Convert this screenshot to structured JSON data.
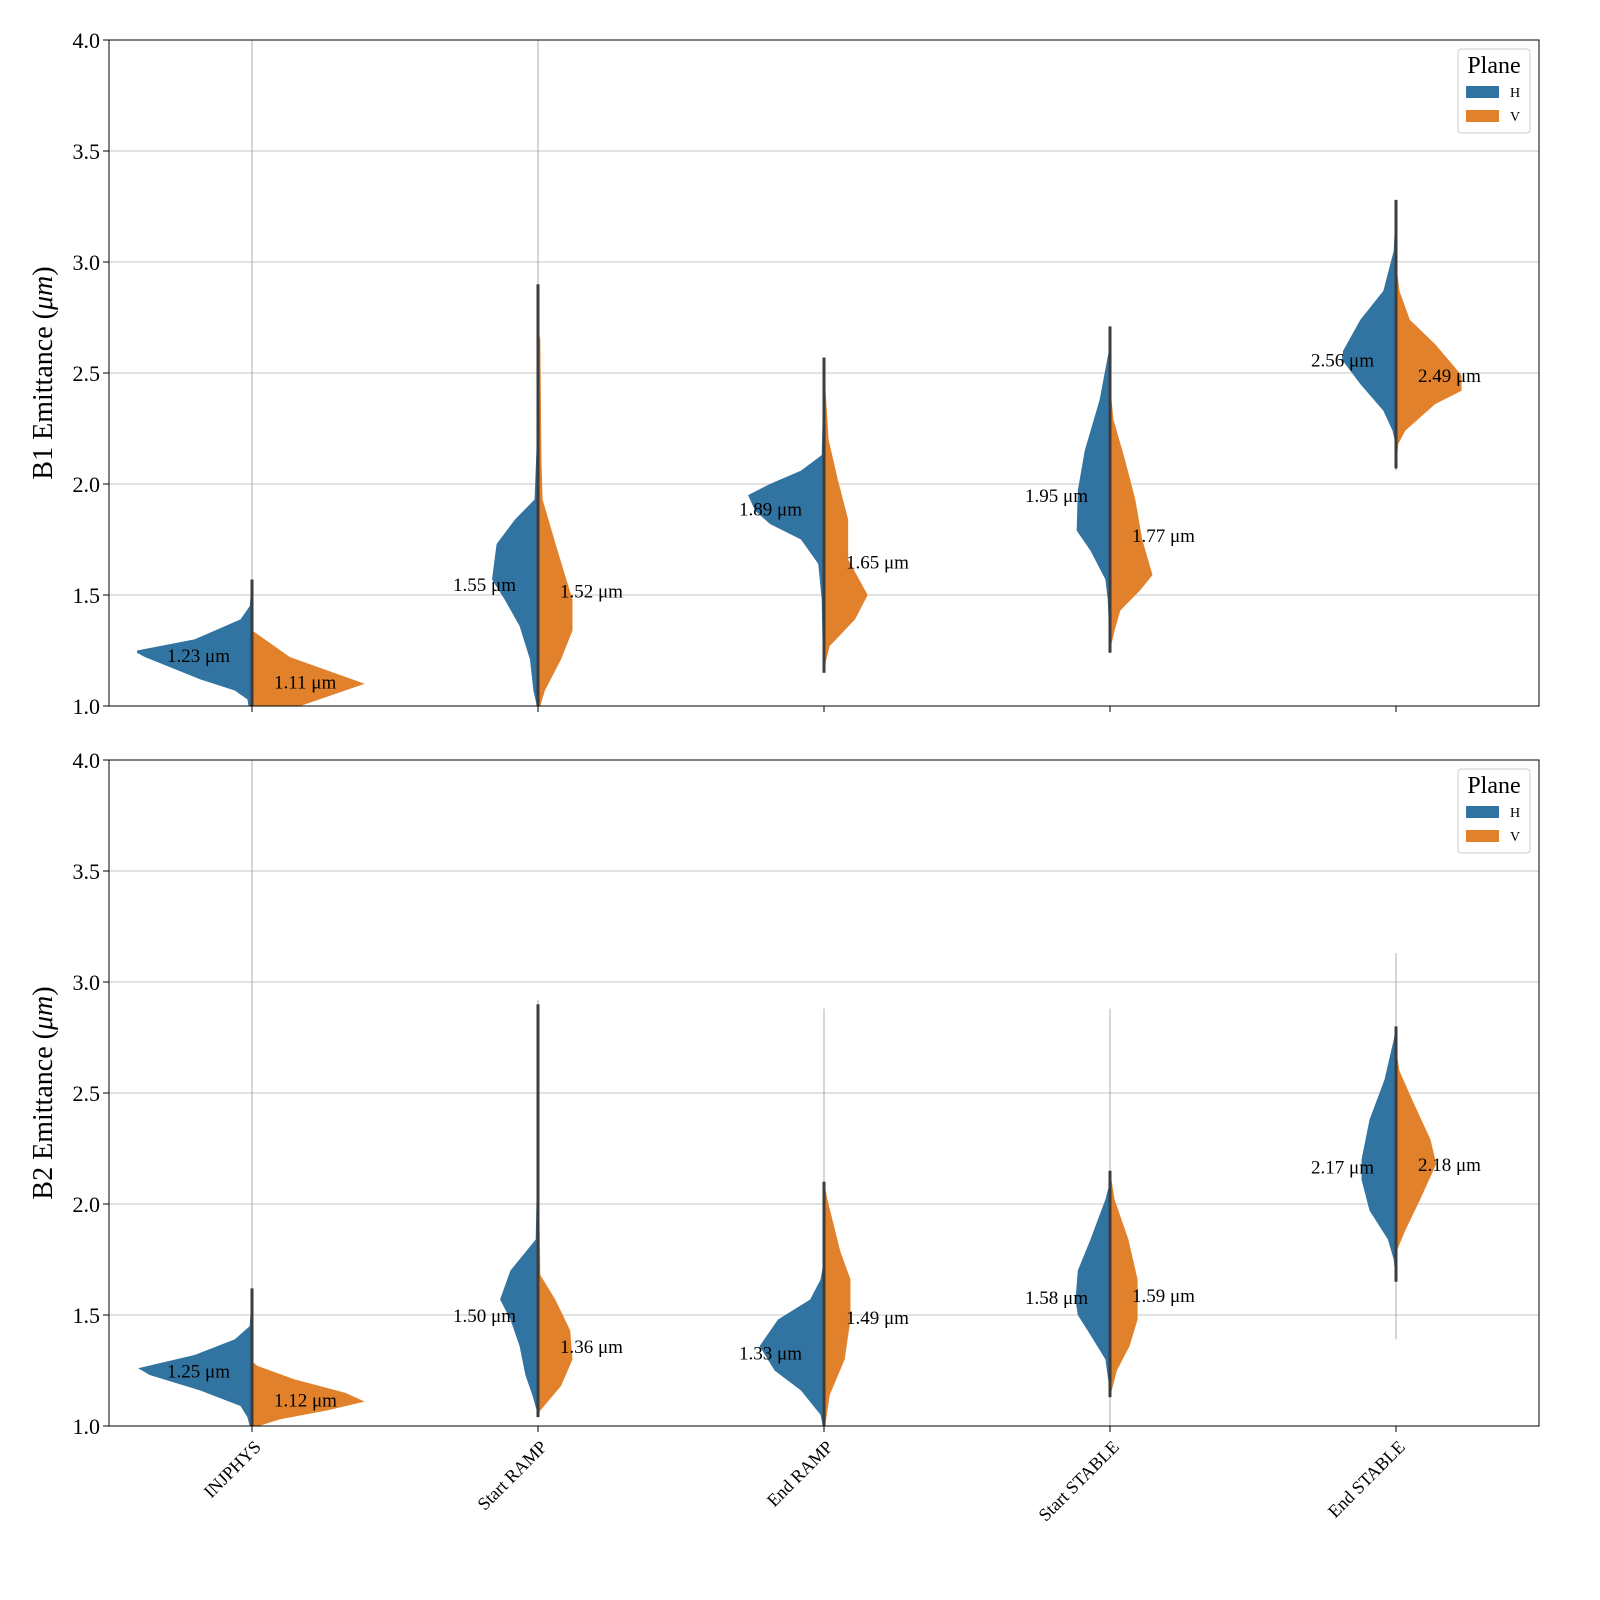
{
  "chart_data": [
    {
      "type": "violin-split",
      "ylabel": "B1 Emittance (",
      "ylabel_unit": "μm",
      "ylabel_close": ")",
      "ylim": [
        1.0,
        4.0
      ],
      "yticks": [
        "1.0",
        "1.5",
        "2.0",
        "2.5",
        "3.0",
        "3.5",
        "4.0"
      ],
      "grid": true,
      "legend": {
        "title": "Plane",
        "entries": [
          "H",
          "V"
        ],
        "placement": "top-right"
      },
      "categories": [
        "INJPHYS",
        "Start RAMP",
        "End RAMP",
        "Start STABLE",
        "End STABLE"
      ],
      "annotations": {
        "H": [
          "1.23 μm",
          "1.55 μm",
          "1.89 μm",
          "1.95 μm",
          "2.56 μm"
        ],
        "V": [
          "1.11 μm",
          "1.52 μm",
          "1.65 μm",
          "1.77 μm",
          "2.49 μm"
        ]
      },
      "means": {
        "H": [
          1.23,
          1.55,
          1.89,
          1.95,
          2.56
        ],
        "V": [
          1.11,
          1.52,
          1.65,
          1.77,
          2.49
        ]
      },
      "ranges": [
        [
          1.0,
          4.0
        ],
        [
          1.0,
          4.0
        ],
        [
          1.15,
          2.57
        ],
        [
          1.24,
          2.71
        ],
        [
          2.06,
          3.28
        ]
      ],
      "density": {
        "H": [
          [
            [
              1.0,
              0.03
            ],
            [
              1.03,
              0.04
            ],
            [
              1.07,
              0.15
            ],
            [
              1.12,
              0.45
            ],
            [
              1.22,
              0.93
            ],
            [
              1.24,
              1.0
            ],
            [
              1.25,
              1.0
            ],
            [
              1.3,
              0.5
            ],
            [
              1.39,
              0.1
            ],
            [
              1.45,
              0.02
            ],
            [
              1.57,
              0
            ]
          ],
          [
            [
              1.0,
              0.01
            ],
            [
              1.07,
              0.04
            ],
            [
              1.21,
              0.07
            ],
            [
              1.36,
              0.16
            ],
            [
              1.48,
              0.29
            ],
            [
              1.57,
              0.4
            ],
            [
              1.73,
              0.36
            ],
            [
              1.84,
              0.2
            ],
            [
              1.93,
              0.03
            ],
            [
              2.2,
              0.01
            ],
            [
              2.9,
              0
            ]
          ],
          [
            [
              1.16,
              0
            ],
            [
              1.21,
              0.01
            ],
            [
              1.48,
              0.02
            ],
            [
              1.64,
              0.05
            ],
            [
              1.75,
              0.2
            ],
            [
              1.82,
              0.47
            ],
            [
              1.88,
              0.6
            ],
            [
              1.95,
              0.66
            ],
            [
              2.0,
              0.47
            ],
            [
              2.06,
              0.2
            ],
            [
              2.13,
              0.02
            ],
            [
              2.57,
              0
            ]
          ],
          [
            [
              1.24,
              0
            ],
            [
              1.48,
              0.02
            ],
            [
              1.57,
              0.04
            ],
            [
              1.7,
              0.17
            ],
            [
              1.79,
              0.29
            ],
            [
              1.97,
              0.28
            ],
            [
              2.15,
              0.22
            ],
            [
              2.38,
              0.09
            ],
            [
              2.6,
              0.01
            ],
            [
              2.71,
              0
            ]
          ],
          [
            [
              2.17,
              0
            ],
            [
              2.24,
              0.03
            ],
            [
              2.33,
              0.11
            ],
            [
              2.45,
              0.31
            ],
            [
              2.56,
              0.47
            ],
            [
              2.6,
              0.46
            ],
            [
              2.74,
              0.31
            ],
            [
              2.87,
              0.11
            ],
            [
              3.05,
              0.02
            ],
            [
              3.28,
              0
            ]
          ]
        ],
        "V": [
          [
            [
              1.0,
              0.42
            ],
            [
              1.1,
              0.98
            ],
            [
              1.22,
              0.33
            ],
            [
              1.33,
              0.03
            ],
            [
              1.34,
              0
            ]
          ],
          [
            [
              1.0,
              0.02
            ],
            [
              1.07,
              0.06
            ],
            [
              1.21,
              0.2
            ],
            [
              1.34,
              0.3
            ],
            [
              1.48,
              0.3
            ],
            [
              1.7,
              0.17
            ],
            [
              1.93,
              0.04
            ],
            [
              2.11,
              0.03
            ],
            [
              2.65,
              0.02
            ],
            [
              2.7,
              0
            ]
          ],
          [
            [
              1.15,
              0
            ],
            [
              1.21,
              0.02
            ],
            [
              1.27,
              0.05
            ],
            [
              1.39,
              0.27
            ],
            [
              1.5,
              0.38
            ],
            [
              1.66,
              0.21
            ],
            [
              1.84,
              0.21
            ],
            [
              2.02,
              0.12
            ],
            [
              2.2,
              0.04
            ],
            [
              2.45,
              0.01
            ],
            [
              2.5,
              0
            ]
          ],
          [
            [
              1.25,
              0
            ],
            [
              1.34,
              0.04
            ],
            [
              1.43,
              0.09
            ],
            [
              1.52,
              0.26
            ],
            [
              1.59,
              0.37
            ],
            [
              1.75,
              0.28
            ],
            [
              1.93,
              0.22
            ],
            [
              2.11,
              0.13
            ],
            [
              2.29,
              0.03
            ],
            [
              2.45,
              0
            ]
          ],
          [
            [
              2.07,
              0
            ],
            [
              2.18,
              0.02
            ],
            [
              2.24,
              0.08
            ],
            [
              2.36,
              0.34
            ],
            [
              2.42,
              0.57
            ],
            [
              2.49,
              0.57
            ],
            [
              2.63,
              0.34
            ],
            [
              2.74,
              0.12
            ],
            [
              2.87,
              0.03
            ],
            [
              3.0,
              0
            ]
          ]
        ]
      }
    },
    {
      "type": "violin-split",
      "ylabel": "B2 Emittance (",
      "ylabel_unit": "μm",
      "ylabel_close": ")",
      "ylim": [
        1.0,
        4.0
      ],
      "yticks": [
        "1.0",
        "1.5",
        "2.0",
        "2.5",
        "3.0",
        "3.5",
        "4.0"
      ],
      "grid": true,
      "legend": {
        "title": "Plane",
        "entries": [
          "H",
          "V"
        ],
        "placement": "top-right"
      },
      "categories": [
        "INJPHYS",
        "Start RAMP",
        "End RAMP",
        "Start STABLE",
        "End STABLE"
      ],
      "annotations": {
        "H": [
          "1.25 μm",
          "1.50 μm",
          "1.33 μm",
          "1.58 μm",
          "2.17 μm"
        ],
        "V": [
          "1.12 μm",
          "1.36 μm",
          "1.49 μm",
          "1.59 μm",
          "2.18 μm"
        ]
      },
      "means": {
        "H": [
          1.25,
          1.5,
          1.33,
          1.58,
          2.17
        ],
        "V": [
          1.12,
          1.36,
          1.49,
          1.59,
          2.18
        ]
      },
      "ranges": [
        [
          1.0,
          4.0
        ],
        [
          1.04,
          2.92
        ],
        [
          1.0,
          2.88
        ],
        [
          1.0,
          2.88
        ],
        [
          1.39,
          3.13
        ]
      ],
      "density": {
        "H": [
          [
            [
              1.0,
              0.02
            ],
            [
              1.04,
              0.04
            ],
            [
              1.09,
              0.1
            ],
            [
              1.16,
              0.45
            ],
            [
              1.23,
              0.89
            ],
            [
              1.26,
              0.99
            ],
            [
              1.32,
              0.5
            ],
            [
              1.39,
              0.15
            ],
            [
              1.45,
              0.02
            ],
            [
              1.62,
              0
            ]
          ],
          [
            [
              1.05,
              0
            ],
            [
              1.14,
              0.05
            ],
            [
              1.23,
              0.11
            ],
            [
              1.36,
              0.16
            ],
            [
              1.48,
              0.24
            ],
            [
              1.57,
              0.33
            ],
            [
              1.7,
              0.24
            ],
            [
              1.84,
              0.02
            ],
            [
              2.1,
              0.01
            ],
            [
              2.9,
              0
            ]
          ],
          [
            [
              1.0,
              0.01
            ],
            [
              1.05,
              0.03
            ],
            [
              1.16,
              0.2
            ],
            [
              1.25,
              0.43
            ],
            [
              1.36,
              0.56
            ],
            [
              1.48,
              0.4
            ],
            [
              1.57,
              0.12
            ],
            [
              1.66,
              0.03
            ],
            [
              1.75,
              0
            ]
          ],
          [
            [
              1.15,
              0
            ],
            [
              1.3,
              0.04
            ],
            [
              1.41,
              0.17
            ],
            [
              1.5,
              0.28
            ],
            [
              1.57,
              0.3
            ],
            [
              1.7,
              0.28
            ],
            [
              1.84,
              0.17
            ],
            [
              2.02,
              0.04
            ],
            [
              2.1,
              0
            ]
          ],
          [
            [
              1.65,
              0
            ],
            [
              1.75,
              0.02
            ],
            [
              1.84,
              0.07
            ],
            [
              1.97,
              0.23
            ],
            [
              2.11,
              0.3
            ],
            [
              2.2,
              0.3
            ],
            [
              2.38,
              0.23
            ],
            [
              2.56,
              0.1
            ],
            [
              2.74,
              0.02
            ],
            [
              2.8,
              0
            ]
          ]
        ],
        "V": [
          [
            [
              1.0,
              0.06
            ],
            [
              1.03,
              0.24
            ],
            [
              1.07,
              0.65
            ],
            [
              1.11,
              0.98
            ],
            [
              1.15,
              0.81
            ],
            [
              1.21,
              0.37
            ],
            [
              1.27,
              0.05
            ],
            [
              1.29,
              0
            ]
          ],
          [
            [
              1.04,
              0
            ],
            [
              1.07,
              0.02
            ],
            [
              1.18,
              0.2
            ],
            [
              1.3,
              0.3
            ],
            [
              1.43,
              0.28
            ],
            [
              1.57,
              0.15
            ],
            [
              1.68,
              0.02
            ],
            [
              2.35,
              0
            ]
          ],
          [
            [
              1.0,
              0.01
            ],
            [
              1.14,
              0.05
            ],
            [
              1.3,
              0.18
            ],
            [
              1.48,
              0.23
            ],
            [
              1.66,
              0.23
            ],
            [
              1.79,
              0.14
            ],
            [
              2.02,
              0.03
            ],
            [
              2.1,
              0
            ]
          ],
          [
            [
              1.13,
              0
            ],
            [
              1.25,
              0.06
            ],
            [
              1.36,
              0.17
            ],
            [
              1.48,
              0.24
            ],
            [
              1.66,
              0.24
            ],
            [
              1.84,
              0.16
            ],
            [
              2.02,
              0.04
            ],
            [
              2.15,
              0
            ]
          ],
          [
            [
              1.78,
              0
            ],
            [
              1.88,
              0.08
            ],
            [
              2.02,
              0.21
            ],
            [
              2.18,
              0.35
            ],
            [
              2.29,
              0.3
            ],
            [
              2.47,
              0.14
            ],
            [
              2.6,
              0.03
            ],
            [
              2.7,
              0
            ]
          ]
        ]
      }
    }
  ],
  "colors": {
    "H": "#3274a1",
    "V": "#e1812c",
    "center": "#3d3d3d",
    "grid": "#b0b0b0"
  }
}
